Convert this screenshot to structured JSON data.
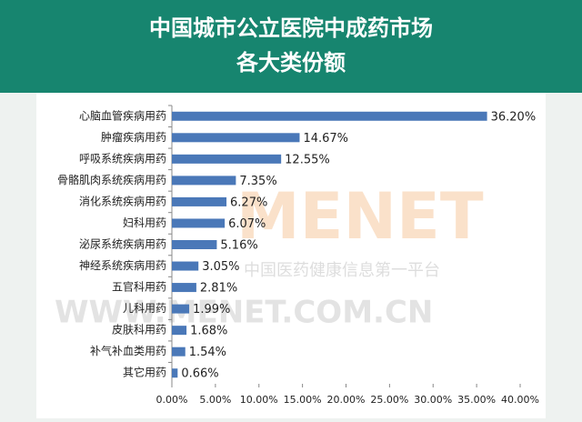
{
  "chart_data": {
    "type": "bar",
    "orientation": "horizontal",
    "title_lines": [
      "中国城市公立医院中成药市场",
      "各大类份额"
    ],
    "categories": [
      "心脑血管疾病用药",
      "肿瘤疾病用药",
      "呼吸系统疾病用药",
      "骨骼肌肉系统疾病用药",
      "消化系统疾病用药",
      "妇科用药",
      "泌尿系统疾病用药",
      "神经系统疾病用药",
      "五官科用药",
      "儿科用药",
      "皮肤科用药",
      "补气补血类用药",
      "其它用药"
    ],
    "values": [
      36.2,
      14.67,
      12.55,
      7.35,
      6.27,
      6.07,
      5.16,
      3.05,
      2.81,
      1.99,
      1.68,
      1.54,
      0.66
    ],
    "value_labels": [
      "36.20%",
      "14.67%",
      "12.55%",
      "7.35%",
      "6.27%",
      "6.07%",
      "5.16%",
      "3.05%",
      "2.81%",
      "1.99%",
      "1.68%",
      "1.54%",
      "0.66%"
    ],
    "color": "#4a78b8",
    "xlim": [
      0,
      40
    ],
    "xticks": [
      {
        "value": 0,
        "label": "0.00%"
      },
      {
        "value": 5,
        "label": "5.00%"
      },
      {
        "value": 10,
        "label": "10.00%"
      },
      {
        "value": 15,
        "label": "15.00%"
      },
      {
        "value": 20,
        "label": "20.00%"
      },
      {
        "value": 25,
        "label": "25.00%"
      },
      {
        "value": 30,
        "label": "30.00%"
      },
      {
        "value": 35,
        "label": "35.00%"
      },
      {
        "value": 40,
        "label": "40.00%"
      }
    ],
    "watermark": [
      "MENET",
      "中国医药健康信息第一平台",
      "WWW.MENET.COM.CN"
    ]
  }
}
